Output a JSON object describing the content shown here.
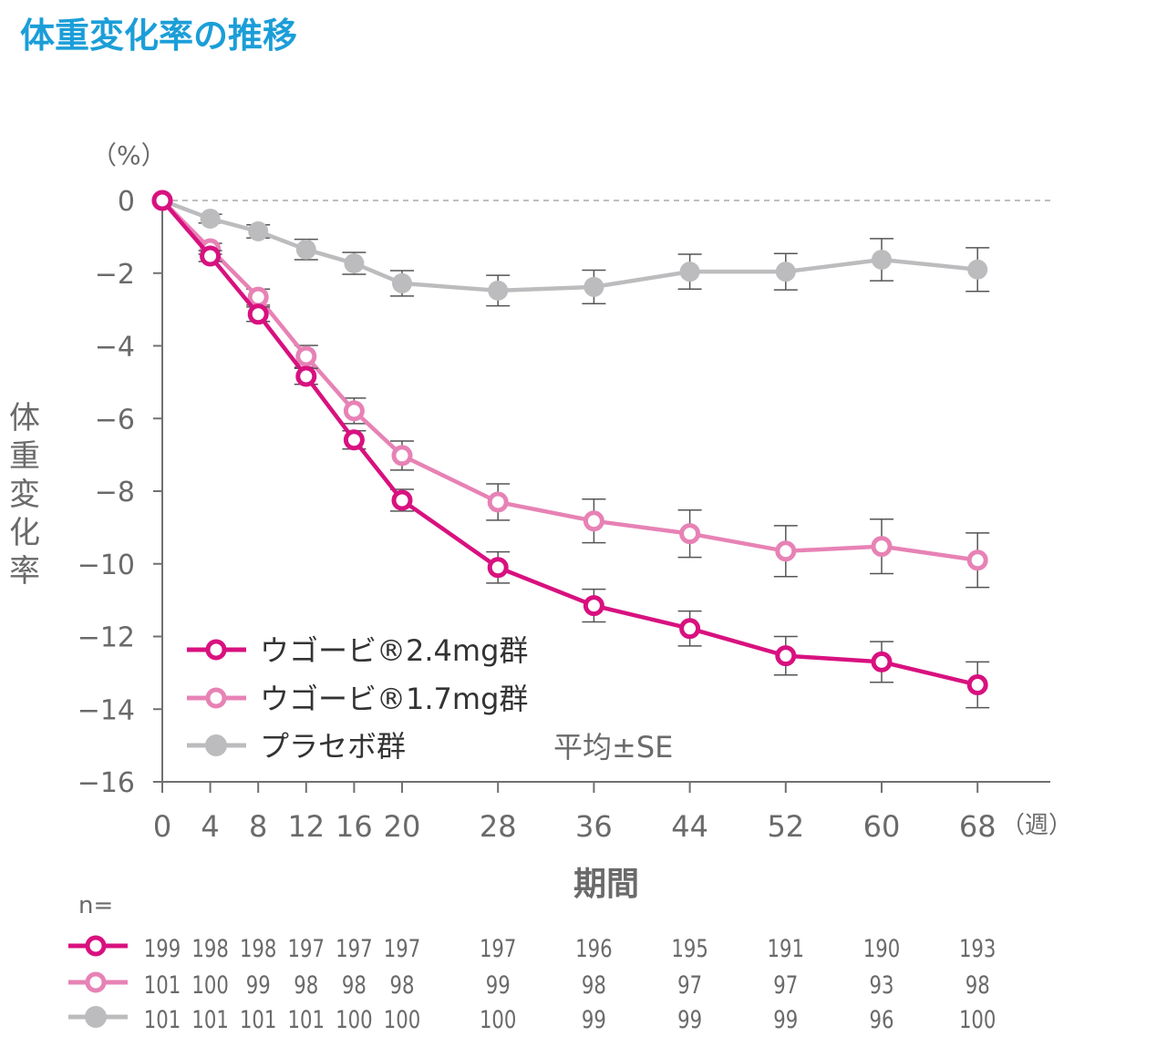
{
  "chart_data": {
    "type": "line",
    "title": "体重変化率の推移",
    "ylabel": "体重変化率",
    "yunit": "（%）",
    "xlabel": "期間",
    "xunit": "（週）",
    "ylim": [
      -16,
      0
    ],
    "yticks": [
      0,
      -2,
      -4,
      -6,
      -8,
      -10,
      -12,
      -14,
      -16
    ],
    "ytick_labels": [
      "0",
      "−2",
      "−4",
      "−6",
      "−8",
      "−10",
      "−12",
      "−14",
      "−16"
    ],
    "x": [
      0,
      4,
      8,
      12,
      16,
      20,
      28,
      36,
      44,
      52,
      60,
      68
    ],
    "xtick_labels": [
      "0",
      "4",
      "8",
      "12",
      "16",
      "20",
      "28",
      "36",
      "44",
      "52",
      "60",
      "68"
    ],
    "xlim": [
      0,
      74
    ],
    "reference_line": 0,
    "error_note": "平均±SE",
    "legend_placement": "bottom-left",
    "series": [
      {
        "name": "ウゴービ®2.4mg群",
        "color": "#d8117f",
        "marker": "open-circle",
        "values": [
          0,
          -1.53,
          -3.13,
          -4.84,
          -6.59,
          -8.25,
          -10.1,
          -11.15,
          -11.78,
          -12.53,
          -12.7,
          -13.33
        ],
        "se": [
          0,
          0.15,
          0.2,
          0.22,
          0.25,
          0.3,
          0.43,
          0.45,
          0.48,
          0.53,
          0.56,
          0.63
        ],
        "n": [
          "199",
          "198",
          "198",
          "197",
          "197",
          "197",
          "197",
          "196",
          "195",
          "191",
          "190",
          "193"
        ]
      },
      {
        "name": "ウゴービ®1.7mg群",
        "color": "#e782b5",
        "marker": "open-circle",
        "values": [
          0,
          -1.33,
          -2.66,
          -4.29,
          -5.79,
          -7.02,
          -8.3,
          -8.82,
          -9.17,
          -9.65,
          -9.52,
          -9.9
        ],
        "se": [
          0,
          0.15,
          0.22,
          0.3,
          0.35,
          0.4,
          0.5,
          0.6,
          0.65,
          0.7,
          0.75,
          0.75
        ],
        "n": [
          "101",
          "100",
          "99",
          "98",
          "98",
          "98",
          "99",
          "98",
          "97",
          "97",
          "93",
          "98"
        ]
      },
      {
        "name": "プラセボ群",
        "color": "#bcbcbe",
        "marker": "filled-circle",
        "values": [
          0,
          -0.5,
          -0.85,
          -1.35,
          -1.73,
          -2.28,
          -2.48,
          -2.38,
          -1.96,
          -1.96,
          -1.63,
          -1.9
        ],
        "se": [
          0,
          0.12,
          0.18,
          0.28,
          0.3,
          0.35,
          0.42,
          0.46,
          0.48,
          0.5,
          0.58,
          0.6
        ],
        "n": [
          "101",
          "101",
          "101",
          "101",
          "100",
          "100",
          "100",
          "99",
          "99",
          "99",
          "96",
          "100"
        ]
      }
    ],
    "n_label": "n="
  },
  "colors": {
    "title": "#1b9ed8",
    "axis": "#707070",
    "text": "#6a6a6a",
    "errorbar": "#555555"
  }
}
